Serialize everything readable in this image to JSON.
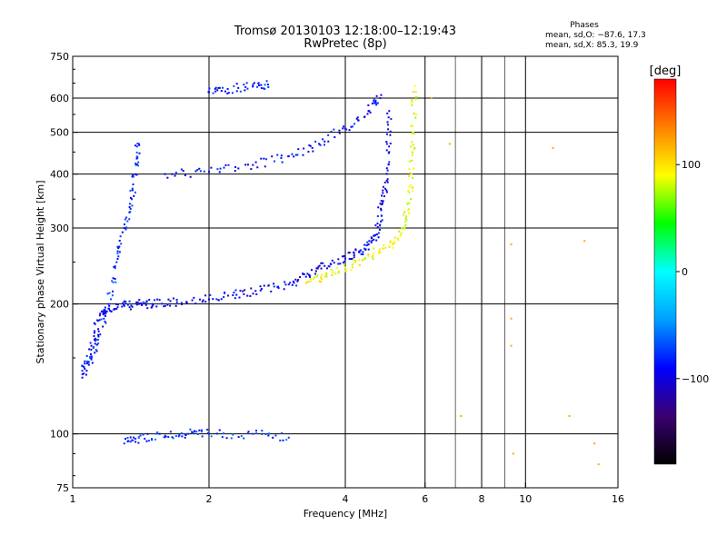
{
  "title_line1": "Tromsø 20130103 12:18:00–12:19:43",
  "title_line2": "RwPretec (8p)",
  "phases": {
    "heading": "Phases",
    "o_line": "mean, sd,O: −87.6, 17.3",
    "x_line": "mean, sd,X:  85.3, 19.9"
  },
  "chart_data": {
    "type": "scatter",
    "xlabel": "Frequency [MHz]",
    "ylabel": "Stationary phase Virtual Height [km]",
    "x_scale": "log",
    "y_scale": "log",
    "xlim": [
      1,
      16
    ],
    "ylim": [
      75,
      750
    ],
    "x_ticks": [
      "1",
      "2",
      "4",
      "6",
      "8",
      "10",
      "16"
    ],
    "x_tick_values": [
      1,
      2,
      4,
      6,
      8,
      10,
      16
    ],
    "y_ticks": [
      "75",
      "100",
      "200",
      "300",
      "400",
      "500",
      "600",
      "750"
    ],
    "y_tick_values": [
      75,
      100,
      200,
      300,
      400,
      500,
      600,
      750
    ],
    "x_gridlines": [
      2,
      4,
      6,
      8,
      10
    ],
    "x_minor_gridlines": [
      7,
      9
    ],
    "y_gridlines": [
      100,
      200,
      300,
      400,
      500,
      600
    ],
    "grid": true,
    "colorbar": {
      "label": "[deg]",
      "range": [
        -180,
        180
      ],
      "ticks": [
        "100",
        "0",
        "−100"
      ],
      "tick_values": [
        100,
        0,
        -100
      ],
      "colors": [
        "#000000",
        "#3a0070",
        "#0000ff",
        "#00a0ff",
        "#00ffff",
        "#00ff00",
        "#ffff00",
        "#ff8000",
        "#ff0000"
      ]
    },
    "series": [
      {
        "phase": "O",
        "trace": "F-region O-mode (blue)",
        "x": [
          1.05,
          1.1,
          1.15,
          1.2,
          1.3,
          1.4,
          1.5,
          1.7,
          2.0,
          2.3,
          2.6,
          3.0,
          3.3,
          3.6,
          4.0,
          4.3,
          4.5,
          4.7,
          4.8,
          4.9,
          5.0,
          5.0
        ],
        "y": [
          135,
          160,
          190,
          195,
          198,
          200,
          200,
          202,
          205,
          210,
          215,
          222,
          235,
          245,
          255,
          265,
          275,
          290,
          330,
          370,
          450,
          560
        ],
        "phase_deg": -95
      },
      {
        "phase": "X",
        "trace": "F-region X-mode (yellow)",
        "x": [
          3.3,
          3.6,
          4.0,
          4.5,
          5.0,
          5.3,
          5.5,
          5.6,
          5.65,
          5.7
        ],
        "y": [
          225,
          232,
          243,
          258,
          272,
          290,
          330,
          400,
          500,
          640
        ],
        "phase_deg": 90
      },
      {
        "phase": "O",
        "trace": "spread F cluster near 1.3 MHz",
        "x": [
          1.05,
          1.1,
          1.15,
          1.2,
          1.25,
          1.3,
          1.35,
          1.38,
          1.4
        ],
        "y": [
          140,
          150,
          170,
          200,
          250,
          300,
          350,
          420,
          470
        ],
        "phase_deg": -80
      },
      {
        "phase": "O",
        "trace": "second hop echo ~400 km",
        "x": [
          1.6,
          2.0,
          2.5,
          3.0,
          3.5,
          4.0,
          4.5,
          4.8
        ],
        "y": [
          400,
          405,
          420,
          440,
          470,
          510,
          560,
          610
        ],
        "phase_deg": -90
      },
      {
        "phase": "O",
        "trace": "traces near 600 km",
        "x": [
          2.0,
          2.2,
          2.5,
          2.7
        ],
        "y": [
          620,
          630,
          640,
          645
        ],
        "phase_deg": -85
      },
      {
        "phase": "O",
        "trace": "E layer ~100 km",
        "x": [
          1.3,
          1.4,
          1.6,
          1.8,
          2.0,
          2.5,
          3.0
        ],
        "y": [
          95,
          98,
          99,
          100,
          100,
          100,
          98
        ],
        "phase_deg": -75
      },
      {
        "phase": "mixed",
        "trace": "scattered interference points",
        "x": [
          6.2,
          6.8,
          7.2,
          9.3,
          9.3,
          9.3,
          9.4,
          11.5,
          12.5,
          13.5,
          14.2,
          14.5
        ],
        "y": [
          600,
          470,
          110,
          275,
          185,
          160,
          90,
          460,
          110,
          280,
          95,
          85
        ],
        "phase_deg": 120
      }
    ]
  }
}
